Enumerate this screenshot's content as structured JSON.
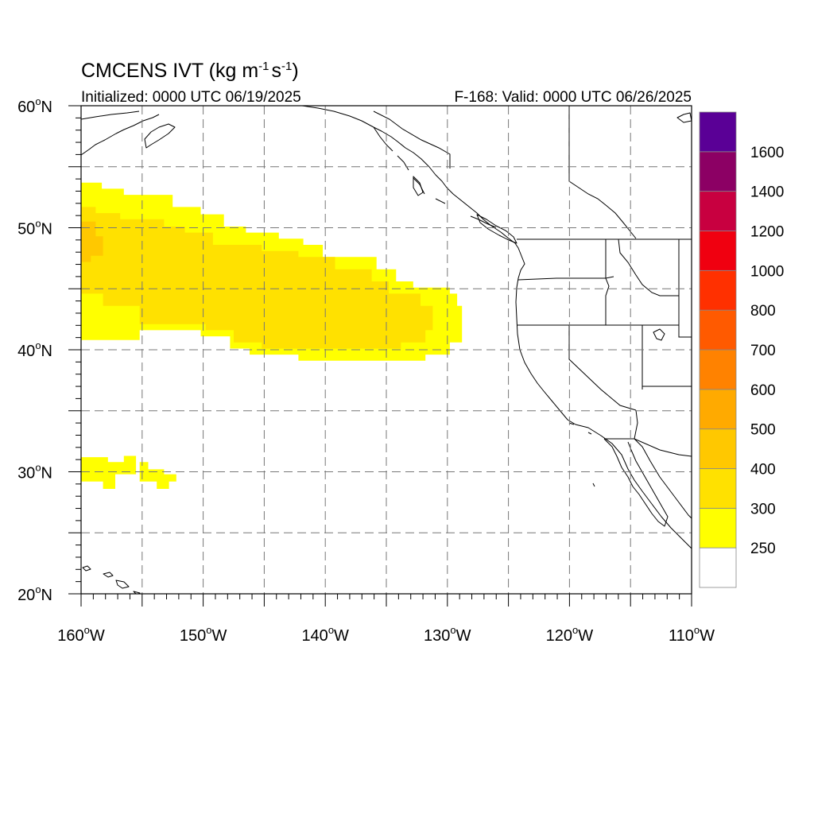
{
  "title": {
    "main": "CMCENS IVT (kg m",
    "sup1": "-1",
    "mid": "s",
    "sup2": "-1",
    "end": ")"
  },
  "subtitle_left": "Initialized: 0000 UTC 06/19/2025",
  "subtitle_right": "F-168: Valid: 0000 UTC 06/26/2025",
  "map": {
    "projection": "cylindrical-equidistant",
    "lon_range": [
      -160,
      -110
    ],
    "lat_range": [
      20,
      60
    ],
    "grid": true,
    "lat_ticks": [
      {
        "value": 60,
        "label": "60",
        "hemi": "N"
      },
      {
        "value": 50,
        "label": "50",
        "hemi": "N"
      },
      {
        "value": 40,
        "label": "40",
        "hemi": "N"
      },
      {
        "value": 30,
        "label": "30",
        "hemi": "N"
      },
      {
        "value": 20,
        "label": "20",
        "hemi": "N"
      }
    ],
    "lon_ticks": [
      {
        "value": -160,
        "label": "160",
        "hemi": "W"
      },
      {
        "value": -150,
        "label": "150",
        "hemi": "W"
      },
      {
        "value": -140,
        "label": "140",
        "hemi": "W"
      },
      {
        "value": -130,
        "label": "130",
        "hemi": "W"
      },
      {
        "value": -120,
        "label": "120",
        "hemi": "W"
      },
      {
        "value": -110,
        "label": "110",
        "hemi": "W"
      }
    ]
  },
  "colorbar": {
    "levels": [
      "250",
      "300",
      "400",
      "500",
      "600",
      "700",
      "800",
      "1000",
      "1200",
      "1400",
      "1600"
    ],
    "colors": [
      "#ffffff",
      "#ffff00",
      "#ffe100",
      "#ffc800",
      "#ffaa00",
      "#ff8200",
      "#ff5a00",
      "#ff3000",
      "#f00010",
      "#c80040",
      "#8c0064",
      "#5a0096"
    ]
  },
  "chart_data": {
    "type": "heatmap",
    "variable": "IVT",
    "units": "kg m-1 s-1",
    "regions": [
      {
        "class": 1,
        "polygon": [
          [
            -160,
            53.7
          ],
          [
            -158.3,
            53.7
          ],
          [
            -158.3,
            53.2
          ],
          [
            -156.5,
            53.2
          ],
          [
            -156.5,
            52.7
          ],
          [
            -152.5,
            52.7
          ],
          [
            -152.5,
            51.7
          ],
          [
            -150.2,
            51.7
          ],
          [
            -150.2,
            51.1
          ],
          [
            -148.3,
            51.1
          ],
          [
            -148.3,
            50.1
          ],
          [
            -146.5,
            50.1
          ],
          [
            -146.5,
            49.6
          ],
          [
            -143.8,
            49.6
          ],
          [
            -143.8,
            49.1
          ],
          [
            -141.8,
            49.1
          ],
          [
            -141.8,
            48.6
          ],
          [
            -140.2,
            48.6
          ],
          [
            -140.2,
            47.6
          ],
          [
            -135.8,
            47.6
          ],
          [
            -135.8,
            46.6
          ],
          [
            -134.2,
            46.6
          ],
          [
            -134.2,
            45.6
          ],
          [
            -132.8,
            45.6
          ],
          [
            -132.8,
            45.1
          ],
          [
            -129.8,
            45.1
          ],
          [
            -129.8,
            44.6
          ],
          [
            -129.2,
            44.6
          ],
          [
            -129.2,
            43.6
          ],
          [
            -128.8,
            43.6
          ],
          [
            -128.8,
            40.6
          ],
          [
            -129.8,
            40.6
          ],
          [
            -129.8,
            39.6
          ],
          [
            -131.8,
            39.6
          ],
          [
            -131.8,
            39.1
          ],
          [
            -142.2,
            39.1
          ],
          [
            -142.2,
            39.6
          ],
          [
            -146.2,
            39.6
          ],
          [
            -146.2,
            40.1
          ],
          [
            -147.8,
            40.1
          ],
          [
            -147.8,
            41.1
          ],
          [
            -150.2,
            41.1
          ],
          [
            -150.2,
            41.6
          ],
          [
            -155.2,
            41.6
          ],
          [
            -155.2,
            40.8
          ],
          [
            -160,
            40.8
          ]
        ]
      },
      {
        "class": 2,
        "polygon": [
          [
            -160,
            51.7
          ],
          [
            -158.8,
            51.7
          ],
          [
            -158.8,
            51.2
          ],
          [
            -156.8,
            51.2
          ],
          [
            -156.8,
            50.7
          ],
          [
            -153.2,
            50.7
          ],
          [
            -153.2,
            50.1
          ],
          [
            -151.5,
            50.1
          ],
          [
            -151.5,
            49.6
          ],
          [
            -149.2,
            49.6
          ],
          [
            -149.2,
            48.6
          ],
          [
            -145.2,
            48.6
          ],
          [
            -145.2,
            48.1
          ],
          [
            -142.2,
            48.1
          ],
          [
            -142.2,
            47.6
          ],
          [
            -139.2,
            47.6
          ],
          [
            -139.2,
            46.6
          ],
          [
            -136.2,
            46.6
          ],
          [
            -136.2,
            45.6
          ],
          [
            -134.8,
            45.6
          ],
          [
            -134.8,
            44.6
          ],
          [
            -132.2,
            44.6
          ],
          [
            -132.2,
            43.6
          ],
          [
            -131.2,
            43.6
          ],
          [
            -131.2,
            41.6
          ],
          [
            -131.8,
            41.6
          ],
          [
            -131.8,
            40.6
          ],
          [
            -133.8,
            40.6
          ],
          [
            -133.8,
            40.1
          ],
          [
            -145.2,
            40.1
          ],
          [
            -145.2,
            40.6
          ],
          [
            -147.5,
            40.6
          ],
          [
            -147.5,
            41.6
          ],
          [
            -149.8,
            41.6
          ],
          [
            -149.8,
            42.1
          ],
          [
            -155.2,
            42.1
          ],
          [
            -155.2,
            43.6
          ],
          [
            -158.2,
            43.6
          ],
          [
            -158.2,
            44.6
          ],
          [
            -160,
            44.6
          ]
        ]
      },
      {
        "class": 3,
        "polygon": [
          [
            -160,
            50.5
          ],
          [
            -158.8,
            50.5
          ],
          [
            -158.8,
            49.3
          ],
          [
            -158.2,
            49.3
          ],
          [
            -158.2,
            47.7
          ],
          [
            -159.2,
            47.7
          ],
          [
            -159.2,
            47.2
          ],
          [
            -160,
            47.2
          ]
        ]
      },
      {
        "class": 1,
        "polygon": [
          [
            -160,
            31.2
          ],
          [
            -157.8,
            31.2
          ],
          [
            -157.8,
            30.8
          ],
          [
            -156.5,
            30.8
          ],
          [
            -156.5,
            31.3
          ],
          [
            -155.5,
            31.3
          ],
          [
            -155.5,
            29.8
          ],
          [
            -157.2,
            29.8
          ],
          [
            -157.2,
            28.6
          ],
          [
            -158.2,
            28.6
          ],
          [
            -158.2,
            29.2
          ],
          [
            -160,
            29.2
          ]
        ]
      },
      {
        "class": 1,
        "polygon": [
          [
            -155.2,
            30.8
          ],
          [
            -154.5,
            30.8
          ],
          [
            -154.5,
            30.2
          ],
          [
            -153.2,
            30.2
          ],
          [
            -153.2,
            29.8
          ],
          [
            -152.2,
            29.8
          ],
          [
            -152.2,
            29.2
          ],
          [
            -152.8,
            29.2
          ],
          [
            -152.8,
            28.6
          ],
          [
            -153.8,
            28.6
          ],
          [
            -153.8,
            29.2
          ],
          [
            -155.2,
            29.2
          ]
        ]
      }
    ]
  }
}
